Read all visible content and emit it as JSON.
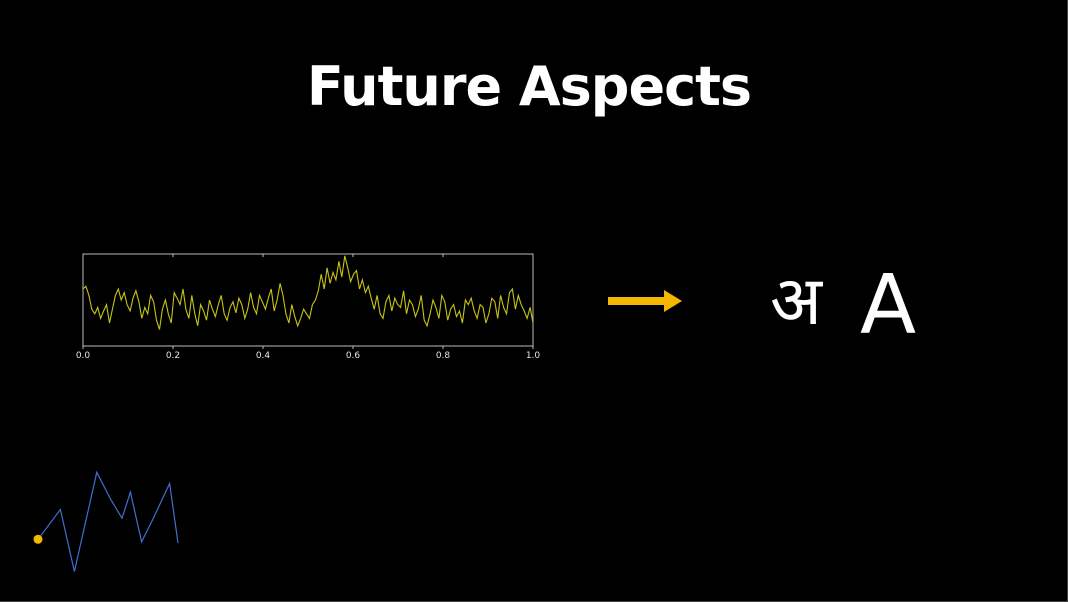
{
  "slide": {
    "title": "Future Aspects"
  },
  "colors": {
    "background": "#000000",
    "signal": "#c8c414",
    "arrow": "#f5b800",
    "stroke_path": "#3f6fd0",
    "stroke_dot": "#f5b800",
    "text": "#ffffff"
  },
  "output": {
    "devanagari": "अ",
    "latin": "A"
  },
  "chart_data": {
    "type": "line",
    "x_range": [
      0.0,
      1.0
    ],
    "xticks": [
      "0.0",
      "0.2",
      "0.4",
      "0.6",
      "0.8",
      "1.0"
    ],
    "ylim": [
      0,
      1
    ],
    "series": [
      {
        "values": [
          0.62,
          0.65,
          0.55,
          0.4,
          0.35,
          0.42,
          0.3,
          0.38,
          0.45,
          0.25,
          0.4,
          0.55,
          0.62,
          0.5,
          0.58,
          0.45,
          0.38,
          0.52,
          0.6,
          0.48,
          0.3,
          0.42,
          0.35,
          0.55,
          0.48,
          0.28,
          0.18,
          0.4,
          0.5,
          0.35,
          0.25,
          0.58,
          0.52,
          0.45,
          0.62,
          0.4,
          0.3,
          0.55,
          0.35,
          0.22,
          0.45,
          0.38,
          0.28,
          0.5,
          0.4,
          0.32,
          0.45,
          0.55,
          0.35,
          0.28,
          0.42,
          0.48,
          0.36,
          0.52,
          0.45,
          0.3,
          0.4,
          0.58,
          0.42,
          0.35,
          0.55,
          0.48,
          0.4,
          0.52,
          0.62,
          0.38,
          0.5,
          0.68,
          0.55,
          0.35,
          0.25,
          0.45,
          0.32,
          0.22,
          0.3,
          0.4,
          0.35,
          0.3,
          0.45,
          0.5,
          0.6,
          0.78,
          0.62,
          0.85,
          0.68,
          0.8,
          0.72,
          0.92,
          0.75,
          0.98,
          0.85,
          0.7,
          0.78,
          0.82,
          0.62,
          0.72,
          0.58,
          0.65,
          0.52,
          0.4,
          0.55,
          0.35,
          0.3,
          0.48,
          0.55,
          0.38,
          0.52,
          0.45,
          0.42,
          0.6,
          0.35,
          0.5,
          0.45,
          0.32,
          0.4,
          0.55,
          0.28,
          0.22,
          0.35,
          0.5,
          0.42,
          0.3,
          0.55,
          0.48,
          0.28,
          0.4,
          0.45,
          0.32,
          0.38,
          0.25,
          0.5,
          0.45,
          0.52,
          0.38,
          0.3,
          0.45,
          0.42,
          0.25,
          0.35,
          0.52,
          0.48,
          0.3,
          0.55,
          0.42,
          0.35,
          0.58,
          0.62,
          0.4,
          0.55,
          0.45,
          0.38,
          0.3,
          0.42,
          0.25
        ]
      }
    ]
  },
  "stroke_data": {
    "type": "line",
    "points": [
      [
        0,
        0.72
      ],
      [
        0.16,
        0.48
      ],
      [
        0.26,
        0.98
      ],
      [
        0.42,
        0.18
      ],
      [
        0.52,
        0.4
      ],
      [
        0.6,
        0.55
      ],
      [
        0.66,
        0.34
      ],
      [
        0.74,
        0.74
      ],
      [
        0.82,
        0.56
      ],
      [
        0.94,
        0.27
      ],
      [
        1.0,
        0.75
      ]
    ]
  }
}
